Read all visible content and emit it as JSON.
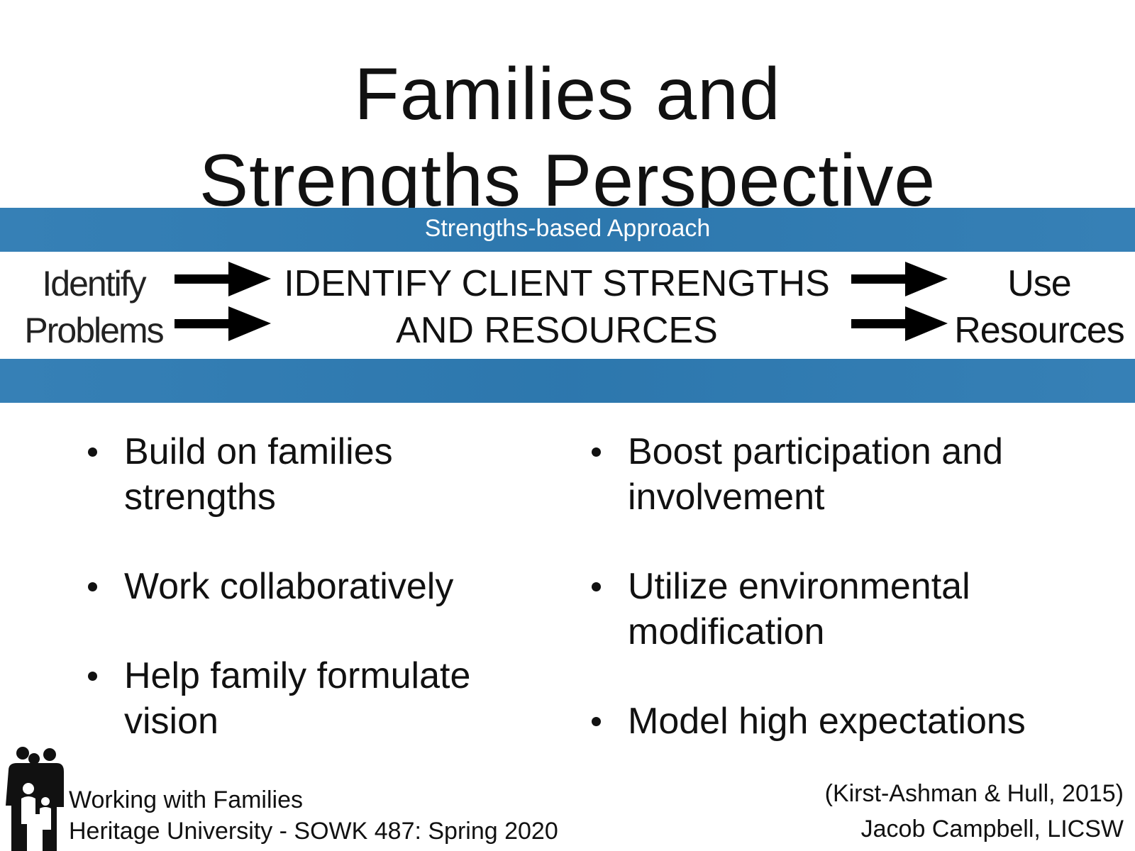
{
  "slide": {
    "title_line1": "Families and",
    "title_line2": "Strengths Perspective"
  },
  "approach": {
    "band_label": "Strengths-based Approach",
    "left_line1": "Identify",
    "left_line2": "Problems",
    "center_line1": "IDENTIFY CLIENT STRENGTHS",
    "center_line2": "AND RESOURCES",
    "right_line1": "Use",
    "right_line2": "Resources",
    "band_color": "#2e7bb3"
  },
  "bullets_left": [
    {
      "line1": "Build on families",
      "line2": "strengths"
    },
    {
      "line1": "Work collaboratively",
      "line2": ""
    },
    {
      "line1": "Help family formulate",
      "line2": "vision"
    }
  ],
  "bullets_right": [
    {
      "line1": "Boost participation and",
      "line2": "involvement"
    },
    {
      "line1": "Utilize environmental",
      "line2": "modification"
    },
    {
      "line1": "Model high expectations",
      "line2": ""
    }
  ],
  "footer": {
    "course_line1": "Working with Families",
    "course_line2": "Heritage University - SOWK 487: Spring 2020",
    "citation": "(Kirst-Ashman & Hull, 2015)",
    "author": "Jacob Campbell, LICSW",
    "logo_icon": "family-icon"
  }
}
